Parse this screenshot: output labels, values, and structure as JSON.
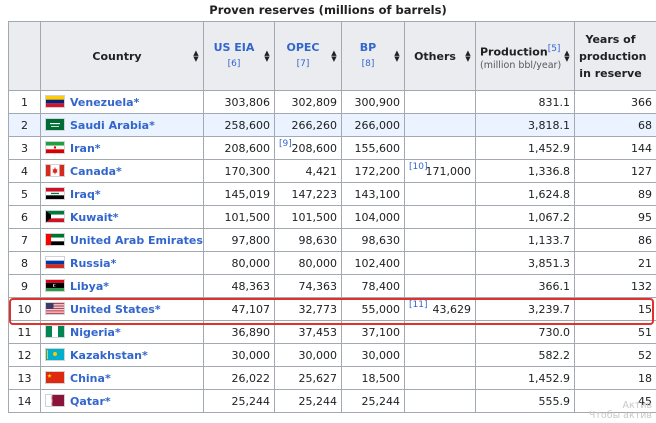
{
  "caption": "Proven reserves (millions of barrels)",
  "headers": {
    "country": "Country",
    "us_eia": "US EIA",
    "us_eia_ref": "[6]",
    "opec": "OPEC",
    "opec_ref": "[7]",
    "bp": "BP",
    "bp_ref": "[8]",
    "others": "Others",
    "production": "Production",
    "production_ref": "[5]",
    "production_sub": "(million bbl/year)",
    "years_line1": "Years of",
    "years_line2": "production",
    "years_line3": "in reserve"
  },
  "rows": [
    {
      "rank": "1",
      "country": "Venezuela",
      "flag": "venezuela",
      "eia": "303,806",
      "opec_ref": "",
      "opec": "302,809",
      "bp": "300,900",
      "others_ref": "",
      "others": "",
      "production": "831.1",
      "years": "366"
    },
    {
      "rank": "2",
      "country": "Saudi Arabia",
      "flag": "saudi-arabia",
      "eia": "258,600",
      "opec_ref": "",
      "opec": "266,260",
      "bp": "266,000",
      "others_ref": "",
      "others": "",
      "production": "3,818.1",
      "years": "68"
    },
    {
      "rank": "3",
      "country": "Iran",
      "flag": "iran",
      "eia": "208,600",
      "opec_ref": "[9]",
      "opec": "208,600",
      "bp": "155,600",
      "others_ref": "",
      "others": "",
      "production": "1,452.9",
      "years": "144"
    },
    {
      "rank": "4",
      "country": "Canada",
      "flag": "canada",
      "eia": "170,300",
      "opec_ref": "",
      "opec": "4,421",
      "bp": "172,200",
      "others_ref": "[10]",
      "others": "171,000",
      "production": "1,336.8",
      "years": "127"
    },
    {
      "rank": "5",
      "country": "Iraq",
      "flag": "iraq",
      "eia": "145,019",
      "opec_ref": "",
      "opec": "147,223",
      "bp": "143,100",
      "others_ref": "",
      "others": "",
      "production": "1,624.8",
      "years": "89"
    },
    {
      "rank": "6",
      "country": "Kuwait",
      "flag": "kuwait",
      "eia": "101,500",
      "opec_ref": "",
      "opec": "101,500",
      "bp": "104,000",
      "others_ref": "",
      "others": "",
      "production": "1,067.2",
      "years": "95"
    },
    {
      "rank": "7",
      "country": "United Arab Emirates",
      "flag": "uae",
      "eia": "97,800",
      "opec_ref": "",
      "opec": "98,630",
      "bp": "98,630",
      "others_ref": "",
      "others": "",
      "production": "1,133.7",
      "years": "86"
    },
    {
      "rank": "8",
      "country": "Russia",
      "flag": "russia",
      "eia": "80,000",
      "opec_ref": "",
      "opec": "80,000",
      "bp": "102,400",
      "others_ref": "",
      "others": "",
      "production": "3,851.3",
      "years": "21"
    },
    {
      "rank": "9",
      "country": "Libya",
      "flag": "libya",
      "eia": "48,363",
      "opec_ref": "",
      "opec": "74,363",
      "bp": "78,400",
      "others_ref": "",
      "others": "",
      "production": "366.1",
      "years": "132"
    },
    {
      "rank": "10",
      "country": "United States",
      "flag": "united-states",
      "eia": "47,107",
      "opec_ref": "",
      "opec": "32,773",
      "bp": "55,000",
      "others_ref": "[11]",
      "others": "43,629",
      "production": "3,239.7",
      "years": "15"
    },
    {
      "rank": "11",
      "country": "Nigeria",
      "flag": "nigeria",
      "eia": "36,890",
      "opec_ref": "",
      "opec": "37,453",
      "bp": "37,100",
      "others_ref": "",
      "others": "",
      "production": "730.0",
      "years": "51"
    },
    {
      "rank": "12",
      "country": "Kazakhstan",
      "flag": "kazakhstan",
      "eia": "30,000",
      "opec_ref": "",
      "opec": "30,000",
      "bp": "30,000",
      "others_ref": "",
      "others": "",
      "production": "582.2",
      "years": "52"
    },
    {
      "rank": "13",
      "country": "China",
      "flag": "china",
      "eia": "26,022",
      "opec_ref": "",
      "opec": "25,627",
      "bp": "18,500",
      "others_ref": "",
      "others": "",
      "production": "1,452.9",
      "years": "18"
    },
    {
      "rank": "14",
      "country": "Qatar",
      "flag": "qatar",
      "eia": "25,244",
      "opec_ref": "",
      "opec": "25,244",
      "bp": "25,244",
      "others_ref": "",
      "others": "",
      "production": "555.9",
      "years": "45"
    }
  ],
  "country_star": "*",
  "highlighted_row": "10",
  "highlight_color": "#e0312b",
  "link_color": "#3366cc",
  "watermark_line1": "Актив",
  "watermark_line2": "Чтобы актив"
}
